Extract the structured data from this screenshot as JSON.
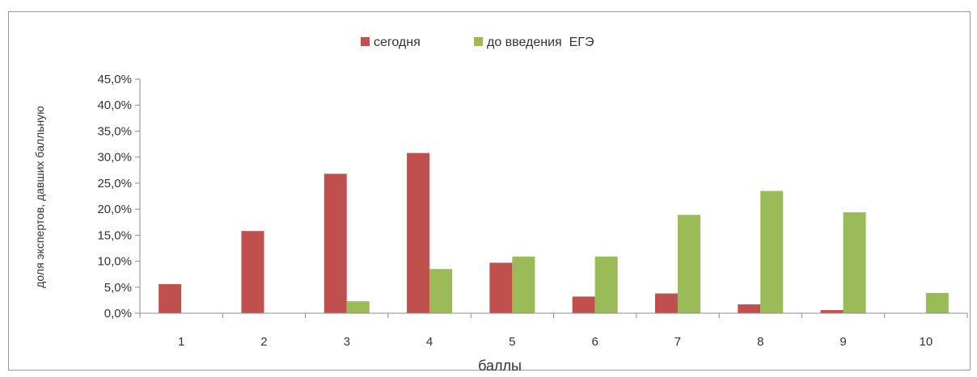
{
  "chart_data": {
    "type": "bar",
    "categories": [
      "1",
      "2",
      "3",
      "4",
      "5",
      "6",
      "7",
      "8",
      "9",
      "10"
    ],
    "series": [
      {
        "name": "сегодня",
        "color": "#c0504d",
        "values": [
          5.6,
          15.8,
          26.8,
          30.8,
          9.7,
          3.2,
          3.8,
          1.7,
          0.6,
          0.0
        ]
      },
      {
        "name": "до введения  ЕГЭ",
        "color": "#9bbb59",
        "values": [
          0.0,
          0.0,
          2.3,
          8.5,
          10.9,
          10.9,
          18.9,
          23.5,
          19.4,
          3.9
        ]
      }
    ],
    "yticks": [
      "0,0%",
      "5,0%",
      "10,0%",
      "15,0%",
      "20,0%",
      "25,0%",
      "30,0%",
      "35,0%",
      "40,0%",
      "45,0%"
    ],
    "ylim": [
      0,
      45
    ],
    "xlabel": "баллы",
    "ylabel": "доля экспертов, давших балльную",
    "legend_position": "top-center",
    "grid": false
  }
}
